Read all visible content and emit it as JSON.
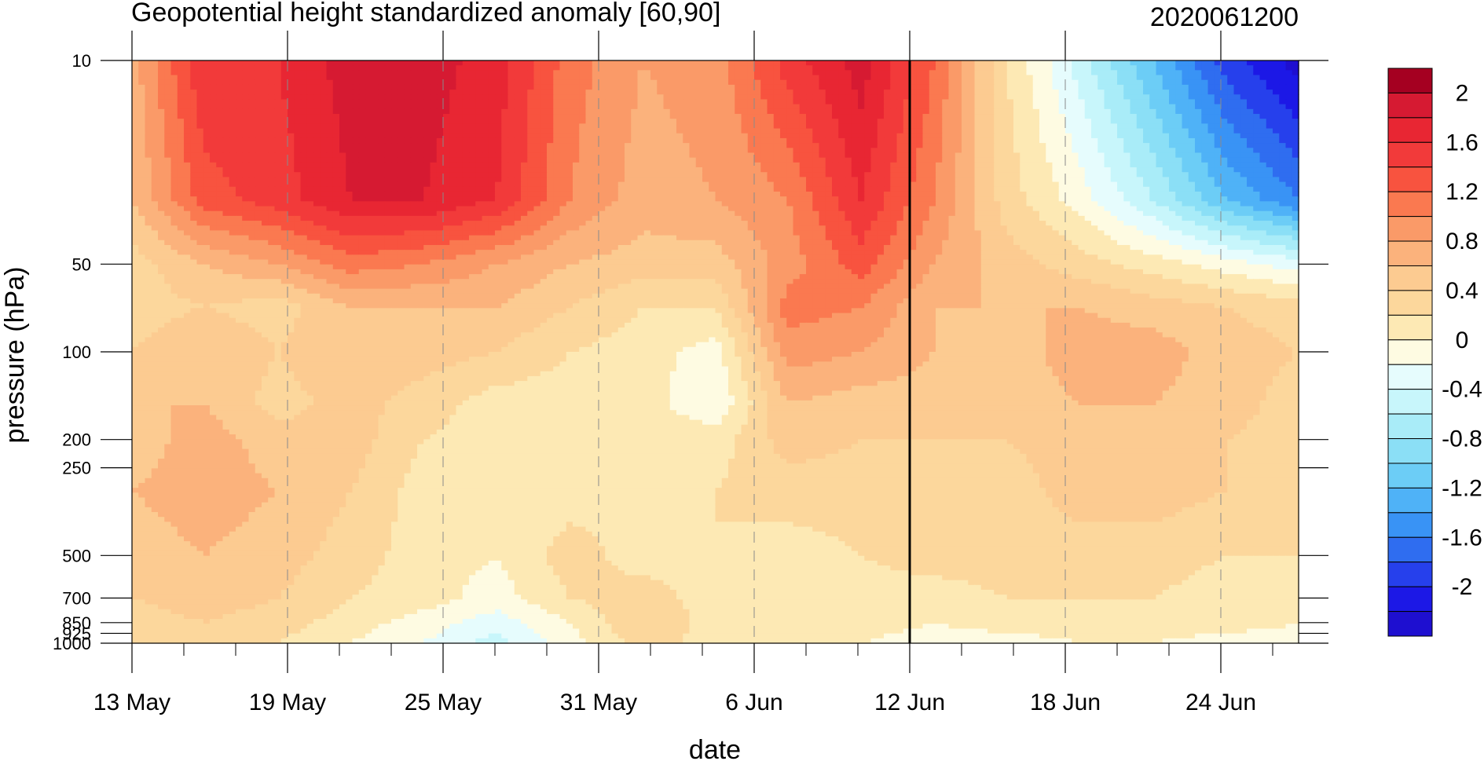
{
  "chart_data": {
    "type": "heatmap",
    "title": "Geopotential height standardized anomaly [60,90]",
    "date_label": "2020061200",
    "xlabel": "date",
    "ylabel": "pressure (hPa)",
    "x_ticks": [
      "13 May",
      "19 May",
      "25 May",
      "31 May",
      "6 Jun",
      "12 Jun",
      "18 Jun",
      "24 Jun"
    ],
    "x_range_days": [
      0,
      45
    ],
    "y_ticks": [
      "10",
      "50",
      "100",
      "200",
      "250",
      "500",
      "700",
      "850",
      "925",
      "1000"
    ],
    "y_levels": [
      10,
      50,
      100,
      200,
      250,
      500,
      700,
      850,
      925,
      1000
    ],
    "y_scale": "log (reversed)",
    "grid": "vertical dashed at date ticks",
    "current_date_marker": "12 Jun",
    "colorbar": {
      "labels": [
        "2",
        "1.6",
        "1.2",
        "0.8",
        "0.4",
        "0",
        "-0.4",
        "-0.8",
        "-1.2",
        "-1.6",
        "-2"
      ],
      "levels": [
        2.2,
        2.0,
        1.8,
        1.6,
        1.4,
        1.2,
        1.0,
        0.8,
        0.6,
        0.4,
        0.2,
        0.0,
        -0.2,
        -0.4,
        -0.6,
        -0.8,
        -1.0,
        -1.2,
        -1.4,
        -1.6,
        -1.8,
        -2.0,
        -2.2
      ],
      "colors": [
        "#a50021",
        "#d61a32",
        "#e82633",
        "#f23a3a",
        "#f8533f",
        "#fa7950",
        "#fa9a68",
        "#fbb27c",
        "#fccb91",
        "#fcd79c",
        "#fde9b4",
        "#fefbe2",
        "#e6fcfd",
        "#c8f6fb",
        "#a9ecf8",
        "#8bdff6",
        "#6ccdf6",
        "#4fb2f7",
        "#3993f5",
        "#2f6df0",
        "#2640ec",
        "#1c18e6",
        "#1e0fd0"
      ]
    },
    "field": [
      {
        "p": 10,
        "v": [
          0.7,
          1.6,
          1.6,
          1.9,
          1.9,
          1.7,
          1.1,
          0.8,
          0.9,
          1.5,
          1.9,
          1.2,
          0.2,
          -0.5,
          -1.2,
          -1.9,
          -2.3
        ]
      },
      {
        "p": 30,
        "v": [
          0.6,
          1.3,
          1.5,
          1.8,
          1.8,
          1.6,
          1.0,
          0.7,
          0.8,
          1.0,
          1.6,
          1.0,
          0.3,
          -0.1,
          -0.6,
          -1.2,
          -1.6
        ]
      },
      {
        "p": 50,
        "v": [
          0.3,
          0.6,
          0.8,
          1.1,
          1.0,
          0.8,
          0.6,
          0.5,
          0.5,
          0.9,
          1.3,
          0.8,
          0.5,
          0.3,
          0.1,
          -0.1,
          -0.3
        ]
      },
      {
        "p": 70,
        "v": [
          0.3,
          0.4,
          0.3,
          0.6,
          0.6,
          0.6,
          0.4,
          0.2,
          0.2,
          1.1,
          1.0,
          0.6,
          0.6,
          0.6,
          0.5,
          0.4,
          0.3
        ]
      },
      {
        "p": 100,
        "v": [
          0.4,
          0.6,
          0.4,
          0.6,
          0.5,
          0.4,
          0.2,
          0.1,
          -0.1,
          0.9,
          0.8,
          0.6,
          0.5,
          0.7,
          0.7,
          0.5,
          0.4
        ]
      },
      {
        "p": 150,
        "v": [
          0.6,
          0.6,
          0.3,
          0.5,
          0.3,
          0.1,
          0.1,
          0.1,
          -0.2,
          0.6,
          0.5,
          0.5,
          0.5,
          0.6,
          0.6,
          0.5,
          0.3
        ]
      },
      {
        "p": 200,
        "v": [
          0.5,
          0.7,
          0.5,
          0.5,
          0.2,
          0.1,
          0.1,
          0.2,
          0.1,
          0.5,
          0.4,
          0.4,
          0.4,
          0.5,
          0.5,
          0.4,
          0.3
        ]
      },
      {
        "p": 300,
        "v": [
          0.6,
          0.7,
          0.6,
          0.4,
          0.1,
          0.0,
          0.1,
          0.2,
          0.2,
          0.3,
          0.3,
          0.4,
          0.3,
          0.5,
          0.5,
          0.4,
          0.3
        ]
      },
      {
        "p": 500,
        "v": [
          0.5,
          0.6,
          0.5,
          0.3,
          0.1,
          0.0,
          0.3,
          0.1,
          0.2,
          0.1,
          0.2,
          0.3,
          0.3,
          0.3,
          0.3,
          0.2,
          0.2
        ]
      },
      {
        "p": 700,
        "v": [
          0.4,
          0.5,
          0.4,
          0.2,
          0.1,
          -0.1,
          0.2,
          0.3,
          0.1,
          0.2,
          0.1,
          0.1,
          0.2,
          0.2,
          0.2,
          0.1,
          0.1
        ]
      },
      {
        "p": 850,
        "v": [
          0.3,
          0.4,
          0.3,
          0.1,
          -0.1,
          -0.3,
          0.0,
          0.4,
          0.1,
          0.2,
          0.1,
          0.0,
          0.1,
          0.1,
          0.1,
          0.1,
          0.0
        ]
      },
      {
        "p": 1000,
        "v": [
          0.2,
          0.3,
          0.2,
          0.0,
          -0.2,
          -0.5,
          -0.1,
          0.3,
          0.1,
          0.1,
          0.0,
          -0.1,
          -0.1,
          0.0,
          0.0,
          -0.1,
          -0.1
        ]
      }
    ]
  }
}
